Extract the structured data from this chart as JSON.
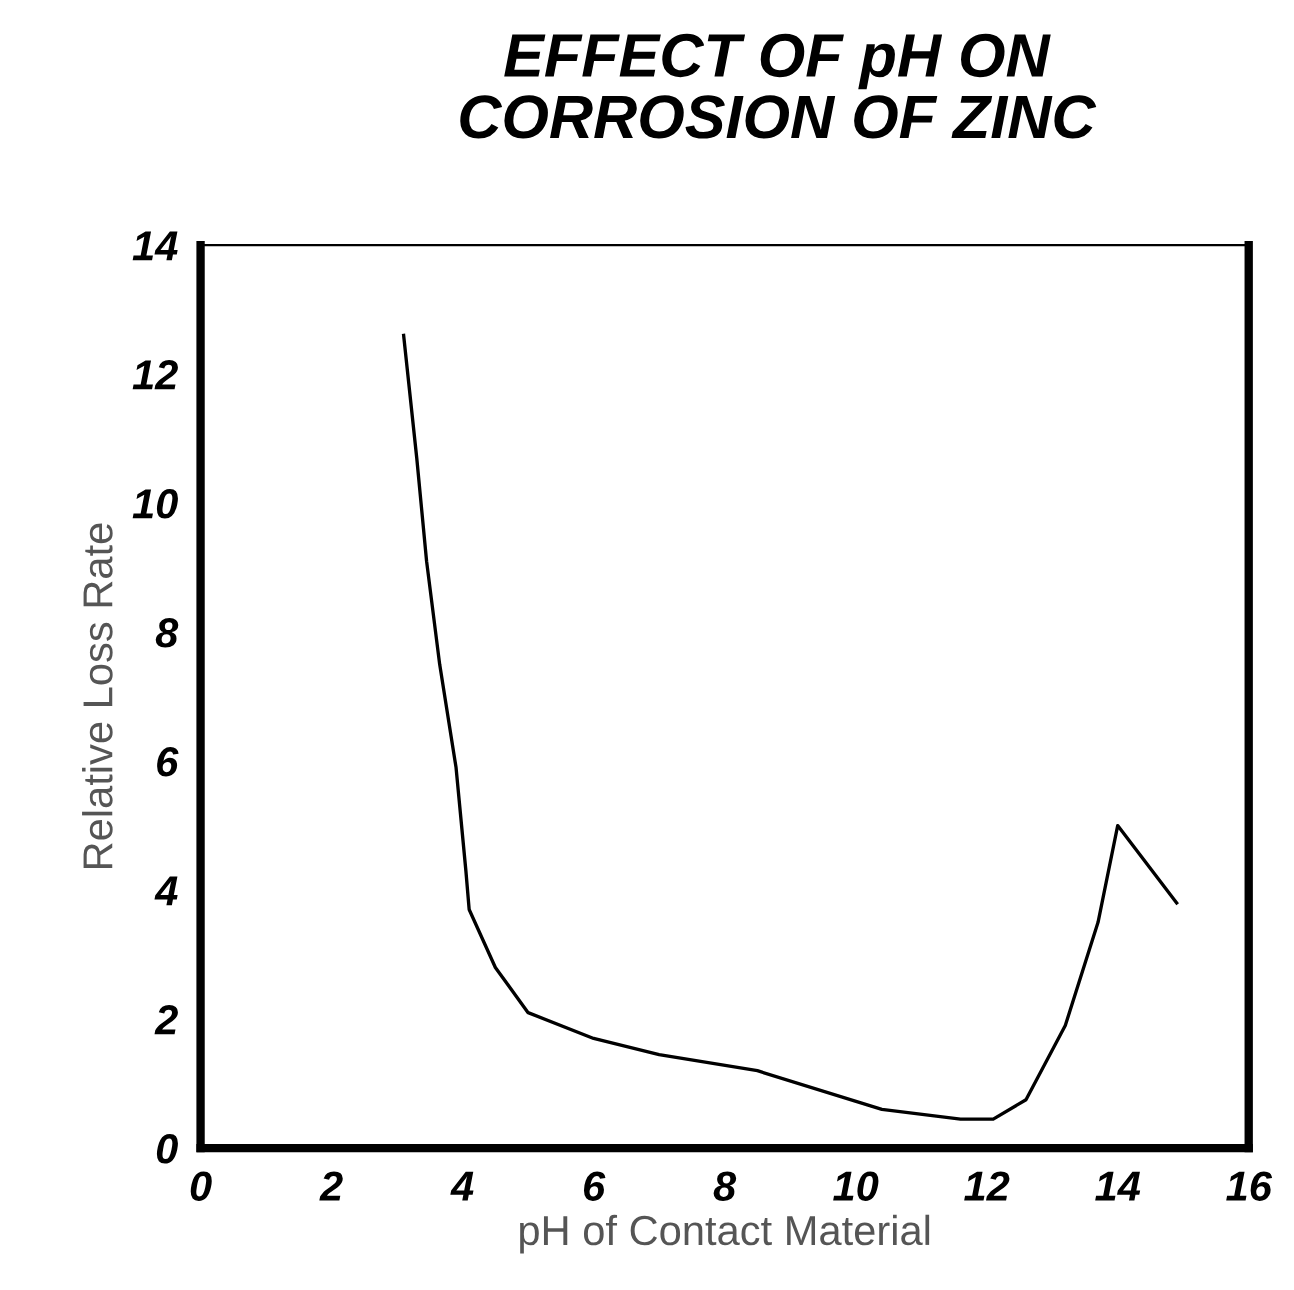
{
  "chart_data": {
    "type": "line",
    "title": "EFFECT OF pH ON\nCORROSION OF ZINC",
    "xlabel": "pH of Contact Material",
    "ylabel": "Relative Loss Rate",
    "x": [
      3.1,
      3.3,
      3.45,
      3.65,
      3.9,
      4.05,
      4.1,
      4.5,
      5.0,
      6.0,
      7.0,
      8.5,
      10.4,
      11.6,
      12.1,
      12.6,
      13.2,
      13.7,
      14.0,
      14.9
    ],
    "series": [
      {
        "color": "#000000",
        "values": [
          12.6,
          10.7,
          9.1,
          7.5,
          5.9,
          4.3,
          3.7,
          2.8,
          2.1,
          1.7,
          1.45,
          1.2,
          0.6,
          0.45,
          0.45,
          0.75,
          1.9,
          3.5,
          5.0,
          3.8
        ]
      }
    ],
    "xlim": [
      0,
      16
    ],
    "ylim": [
      0,
      14
    ],
    "xticks": [
      0,
      2,
      4,
      6,
      8,
      10,
      12,
      14,
      16
    ],
    "yticks": [
      0,
      2,
      4,
      6,
      8,
      10,
      12,
      14
    ],
    "grid": false,
    "legend": false,
    "marker": "none",
    "line_style": "solid"
  }
}
